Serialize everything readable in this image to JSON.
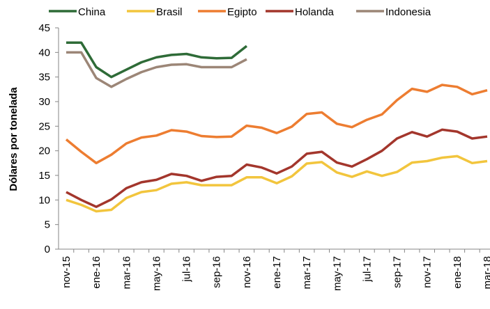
{
  "chart_data": {
    "type": "line",
    "y_label": "Dólares por tonelada",
    "categories": [
      "nov-15",
      null,
      "ene-16",
      null,
      "mar-16",
      null,
      "may-16",
      null,
      "jul-16",
      null,
      "sep-16",
      null,
      "nov-16",
      null,
      "ene-17",
      null,
      "mar-17",
      null,
      "may-17",
      null,
      "jul-17",
      null,
      "sep-17",
      null,
      "nov-17",
      null,
      "ene-18",
      null,
      "mar-18"
    ],
    "series": [
      {
        "name": "China",
        "color": "#2e6b37",
        "values": [
          42,
          42,
          37,
          35,
          36.5,
          38,
          39,
          39.5,
          39.7,
          39,
          38.8,
          38.9,
          41.3,
          null,
          null,
          null,
          null,
          null,
          null,
          null,
          null,
          null,
          null,
          null,
          null,
          null,
          null,
          null,
          null
        ]
      },
      {
        "name": "Brasil",
        "color": "#f2c53d",
        "values": [
          10,
          9,
          7.7,
          8,
          10.4,
          11.6,
          12,
          13.3,
          13.6,
          13,
          13,
          13,
          14.6,
          14.6,
          13.4,
          14.8,
          17.4,
          17.7,
          15.6,
          14.7,
          15.8,
          14.9,
          15.7,
          17.6,
          17.9,
          18.6,
          18.9,
          17.5,
          17.9
        ]
      },
      {
        "name": "Egipto",
        "color": "#ed7d31",
        "values": [
          22.3,
          19.8,
          17.5,
          19.2,
          21.5,
          22.7,
          23.1,
          24.2,
          23.9,
          23,
          22.8,
          22.9,
          25.1,
          24.7,
          23.6,
          24.9,
          27.5,
          27.8,
          25.5,
          24.8,
          26.3,
          27.4,
          30.3,
          32.6,
          32,
          33.4,
          33,
          31.5,
          32.3
        ]
      },
      {
        "name": "Holanda",
        "color": "#a3362c",
        "values": [
          11.6,
          10,
          8.6,
          10.1,
          12.4,
          13.6,
          14.1,
          15.3,
          14.9,
          13.9,
          14.7,
          14.9,
          17.2,
          16.6,
          15.4,
          16.8,
          19.4,
          19.8,
          17.6,
          16.8,
          18.3,
          20,
          22.5,
          23.8,
          22.9,
          24.3,
          23.9,
          22.5,
          22.9
        ]
      },
      {
        "name": "Indonesia",
        "color": "#9c8677",
        "values": [
          40,
          40,
          34.8,
          33,
          34.6,
          36,
          37,
          37.5,
          37.6,
          37,
          37,
          37,
          38.6,
          null,
          null,
          null,
          null,
          null,
          null,
          null,
          null,
          null,
          null,
          null,
          null,
          null,
          null,
          null,
          null
        ]
      }
    ],
    "ylim": [
      0,
      45
    ],
    "yticks": [
      0,
      5,
      10,
      15,
      20,
      25,
      30,
      35,
      40,
      45
    ],
    "grid": false,
    "legend": "top"
  }
}
